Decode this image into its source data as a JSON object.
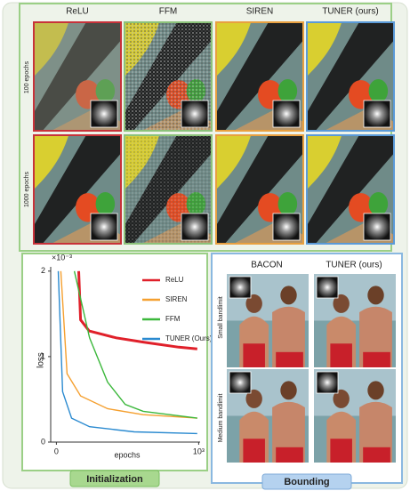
{
  "top_panel": {
    "columns": [
      "ReLU",
      "FFM",
      "SIREN",
      "TUNER (ours)"
    ],
    "rows": [
      "100 epochs",
      "1000 epochs"
    ]
  },
  "chart_data": {
    "type": "line",
    "y_label": "loss",
    "x_label": "epochs",
    "y_multiplier": "×10⁻³",
    "xlim": [
      -40,
      1010
    ],
    "ylim": [
      0,
      2.05
    ],
    "xticks": [
      0,
      {
        "value": 1000,
        "label": "10³"
      }
    ],
    "yticks": [
      0,
      1,
      2
    ],
    "series": [
      {
        "name": "ReLU",
        "color": "#e0202a",
        "x": [
          157,
          170,
          230,
          420,
          610,
          860,
          990
        ],
        "values": [
          2.0,
          1.43,
          1.3,
          1.22,
          1.17,
          1.11,
          1.09
        ]
      },
      {
        "name": "SIREN",
        "color": "#f5a030",
        "x": [
          31,
          75,
          170,
          360,
          610,
          990
        ],
        "values": [
          2.0,
          0.8,
          0.54,
          0.39,
          0.32,
          0.28
        ]
      },
      {
        "name": "FFM",
        "color": "#3cb83c",
        "x": [
          126,
          233,
          360,
          484,
          610,
          990
        ],
        "values": [
          2.0,
          1.22,
          0.7,
          0.44,
          0.36,
          0.28
        ]
      },
      {
        "name": "TUNER (Ours)",
        "color": "#2a8ad0",
        "x": [
          13,
          44,
          107,
          233,
          547,
          990
        ],
        "values": [
          2.0,
          0.59,
          0.28,
          0.18,
          0.12,
          0.1
        ]
      }
    ]
  },
  "initialization_label": "Initialization",
  "bounding": {
    "columns": [
      "BACON",
      "TUNER (ours)"
    ],
    "rows": [
      "Small bandlimit",
      "Medium bandlimit"
    ],
    "label": "Bounding"
  }
}
